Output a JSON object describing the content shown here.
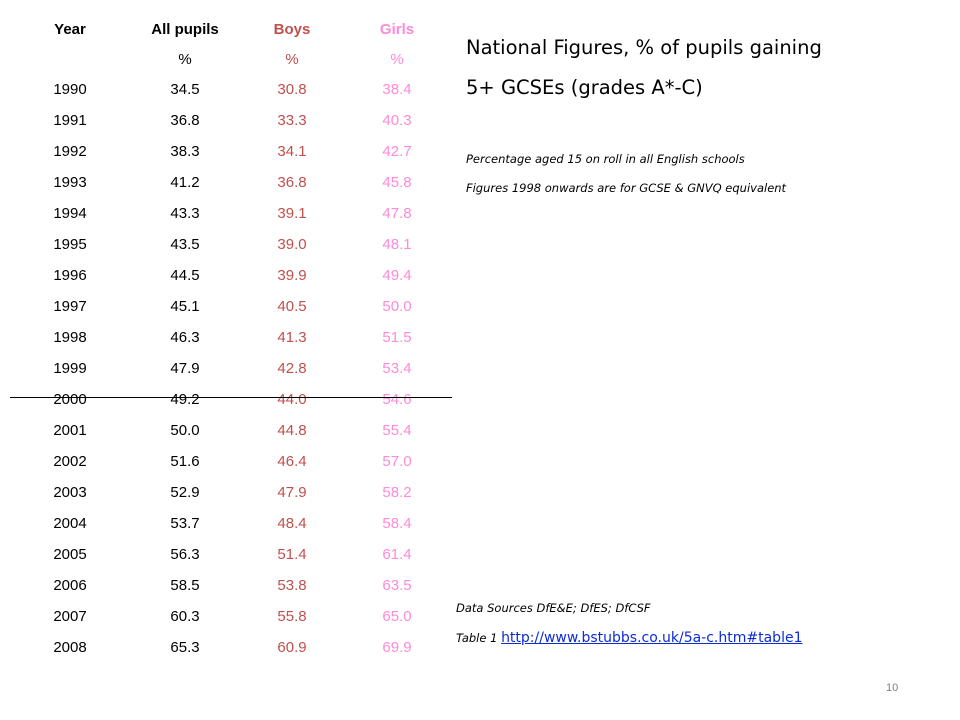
{
  "table": {
    "headers": [
      "Year",
      "All pupils",
      "Boys",
      "Girls"
    ],
    "units": [
      "",
      "%",
      "%",
      "%"
    ],
    "rows": [
      [
        "1990",
        "34.5",
        "30.8",
        "38.4"
      ],
      [
        "1991",
        "36.8",
        "33.3",
        "40.3"
      ],
      [
        "1992",
        "38.3",
        "34.1",
        "42.7"
      ],
      [
        "1993",
        "41.2",
        "36.8",
        "45.8"
      ],
      [
        "1994",
        "43.3",
        "39.1",
        "47.8"
      ],
      [
        "1995",
        "43.5",
        "39.0",
        "48.1"
      ],
      [
        "1996",
        "44.5",
        "39.9",
        "49.4"
      ],
      [
        "1997",
        "45.1",
        "40.5",
        "50.0"
      ],
      [
        "1998",
        "46.3",
        "41.3",
        "51.5"
      ],
      [
        "1999",
        "47.9",
        "42.8",
        "53.4"
      ],
      [
        "2000",
        "49.2",
        "44.0",
        "54.6"
      ],
      [
        "2001",
        "50.0",
        "44.8",
        "55.4"
      ],
      [
        "2002",
        "51.6",
        "46.4",
        "57.0"
      ],
      [
        "2003",
        "52.9",
        "47.9",
        "58.2"
      ],
      [
        "2004",
        "53.7",
        "48.4",
        "58.4"
      ],
      [
        "2005",
        "56.3",
        "51.4",
        "61.4"
      ],
      [
        "2006",
        "58.5",
        "53.8",
        "63.5"
      ],
      [
        "2007",
        "60.3",
        "55.8",
        "65.0"
      ],
      [
        "2008",
        "65.3",
        "60.9",
        "69.9"
      ]
    ]
  },
  "title": {
    "line1": "National Figures, % of pupils gaining",
    "line2": "5+ GCSEs (grades A*-C)"
  },
  "notes": {
    "note1": "Percentage aged 15 on roll in all English schools",
    "note2": "Figures 1998 onwards are for GCSE & GNVQ equivalent"
  },
  "sources": {
    "line1": "Data Sources DfE&E; DfES; DfCSF",
    "table_label": "Table 1 ",
    "link": "http://www.bstubbs.co.uk/5a-c.htm#table1"
  },
  "page_number": "10",
  "colors": {
    "boys": "#c0504d",
    "girls": "#ff8ad8",
    "link": "#0b2bd8"
  }
}
